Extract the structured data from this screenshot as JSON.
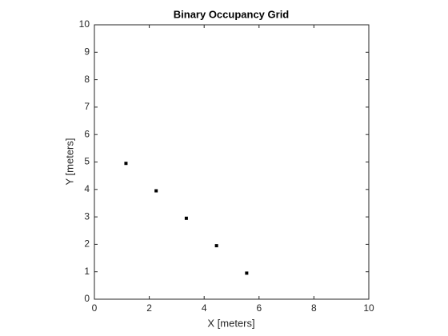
{
  "chart_data": {
    "type": "scatter",
    "title": "Binary Occupancy Grid",
    "x_label": "X [meters]",
    "y_label": "Y [meters]",
    "x": [
      1.15,
      2.25,
      3.35,
      4.45,
      5.55
    ],
    "values": [
      4.95,
      3.95,
      2.95,
      1.95,
      0.95
    ],
    "color": "#000000",
    "xlim": [
      0,
      10
    ],
    "xticks": [
      0,
      2,
      4,
      6,
      8,
      10
    ],
    "ylim": [
      0,
      10
    ],
    "yticks": [
      0,
      1,
      2,
      3,
      4,
      5,
      6,
      7,
      8,
      9,
      10
    ]
  }
}
